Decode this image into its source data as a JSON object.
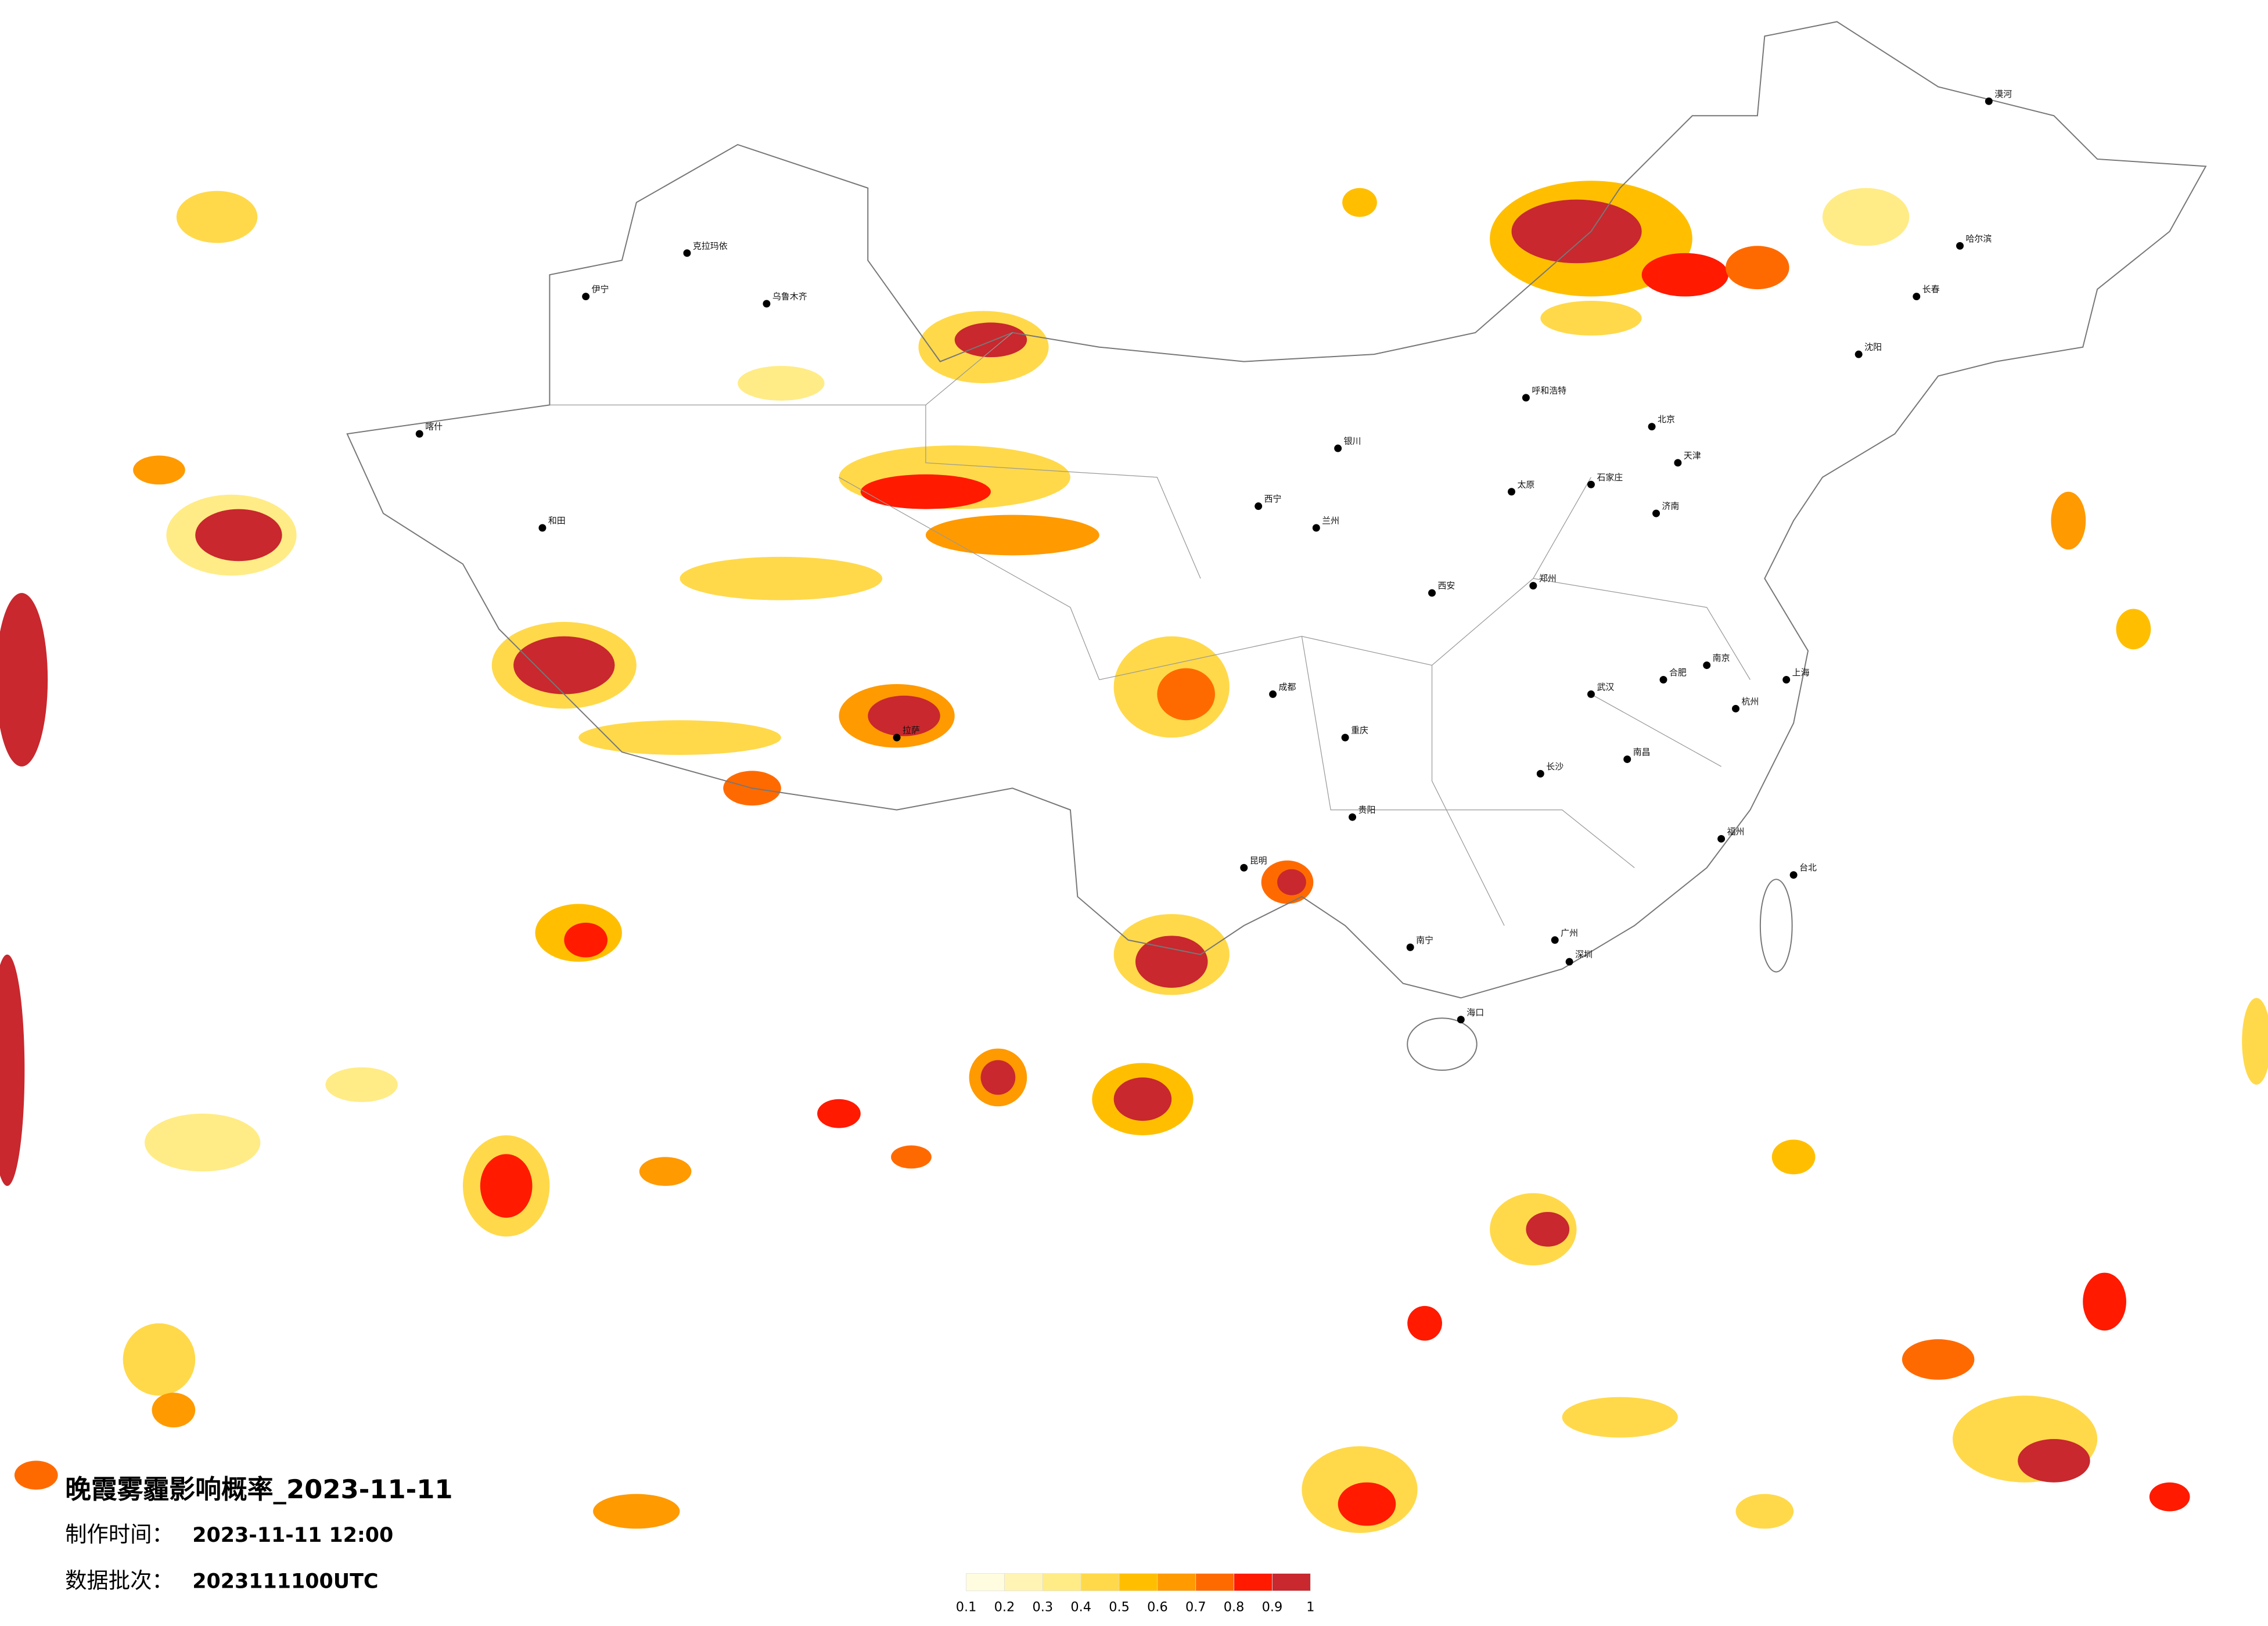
{
  "header": {
    "title": "晚霞雾霾影响概率_2023-11-11",
    "made_label": "制作时间：",
    "made_time": "2023-11-11 12:00",
    "batch_label": "数据批次：",
    "batch": "2023111100UTC"
  },
  "legend": {
    "ticks": [
      0.1,
      0.2,
      0.3,
      0.4,
      0.5,
      0.6,
      0.7,
      0.8,
      0.9,
      1
    ],
    "colors": [
      "#fffce0",
      "#fff4b4",
      "#ffec86",
      "#ffd94a",
      "#ffbf00",
      "#ff9a00",
      "#ff6a00",
      "#ff1a00",
      "#c8282e"
    ]
  },
  "cities": [
    "北京",
    "天津",
    "上海",
    "广州",
    "深圳",
    "重庆",
    "成都",
    "武汉",
    "西安",
    "兰州",
    "乌鲁木齐",
    "拉萨",
    "哈尔滨",
    "长春",
    "沈阳",
    "呼和浩特",
    "银川",
    "西宁",
    "昆明",
    "贵阳",
    "南宁",
    "海口",
    "福州",
    "南昌",
    "长沙",
    "杭州",
    "南京",
    "合肥",
    "郑州",
    "济南",
    "石家庄",
    "太原",
    "台北",
    "和田",
    "喀什",
    "伊宁",
    "克拉玛依",
    "漠河"
  ]
}
